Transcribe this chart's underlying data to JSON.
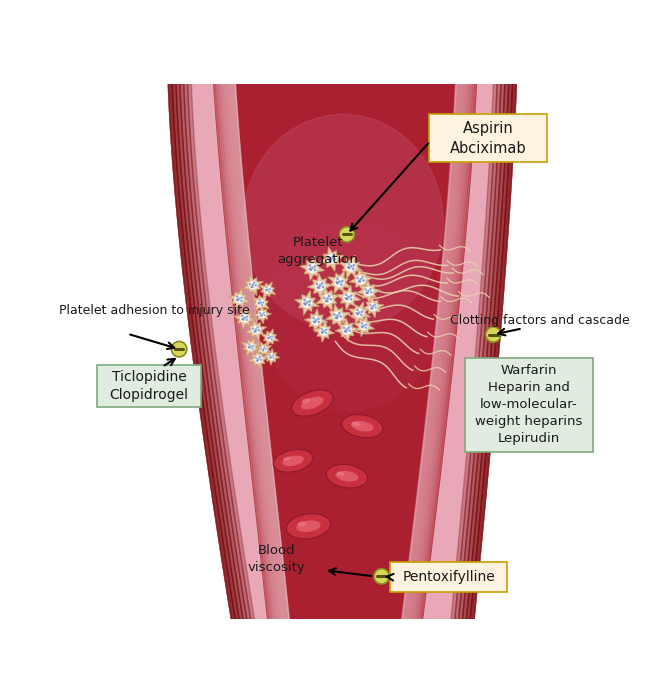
{
  "bg_color": "#ffffff",
  "vessel_outer_color": "#8b1515",
  "vessel_inner_color": "#aa2030",
  "vessel_pink_edge": "#e8b8c0",
  "vessel_highlight": "#c04060",
  "blood_cell_outer": "#c8304a",
  "blood_cell_inner": "#d85060",
  "blood_cell_edge": "#a01828",
  "platelet_body": "#e8c9a8",
  "platelet_edge": "#c8a070",
  "platelet_center": "#f5f0e8",
  "fibrin_color": "#e8d5b0",
  "inhibit_fill": "#d4d870",
  "inhibit_edge": "#8a9020",
  "inhibit_minus": "#5a6010",
  "aspirin_box_fill": "#fdf3e0",
  "aspirin_box_edge": "#c8a000",
  "ticlopidine_box_fill": "#e0ece0",
  "ticlopidine_box_edge": "#80a880",
  "warfarin_box_fill": "#e0ece0",
  "warfarin_box_edge": "#80a880",
  "pentoxifylline_box_fill": "#fdf3e0",
  "pentoxifylline_box_edge": "#c8a000",
  "text_color": "#1a1a1a",
  "arrow_color": "#1a1a1a",
  "label_aspirin": "Aspirin\nAbciximab",
  "label_aggregation": "Platelet\naggregation",
  "label_adhesion": "Platelet adhesion to injury site",
  "label_ticlopidine": "Ticlopidine\nClopidrogel",
  "label_clotting": "Clotting factors and cascade",
  "label_warfarin": "Warfarin\nHeparin and\nlow-molecular-\nweight heparins\nLepirudin",
  "label_viscosity": "Blood\nviscosity",
  "label_pentoxifylline": "Pentoxifylline"
}
